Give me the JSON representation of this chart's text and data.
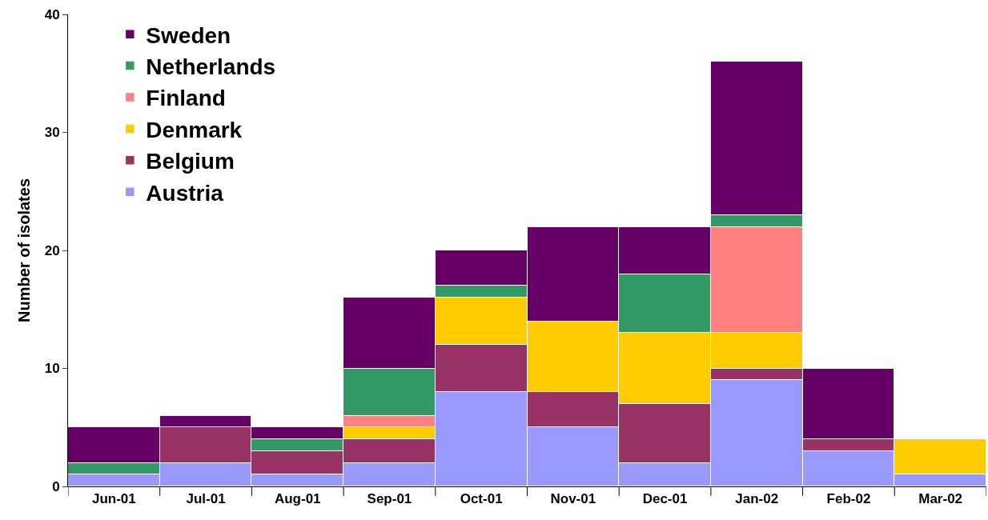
{
  "chart_data": {
    "type": "bar",
    "stacked": true,
    "ylabel": "Number of isolates",
    "categories": [
      "Jun-01",
      "Jul-01",
      "Aug-01",
      "Sep-01",
      "Oct-01",
      "Nov-01",
      "Dec-01",
      "Jan-02",
      "Feb-02",
      "Mar-02"
    ],
    "series": [
      {
        "name": "Austria",
        "color": "#9999ff",
        "values": [
          1,
          2,
          1,
          2,
          8,
          5,
          2,
          9,
          3,
          1
        ]
      },
      {
        "name": "Belgium",
        "color": "#993366",
        "values": [
          null,
          3,
          2,
          2,
          4,
          3,
          5,
          1,
          1,
          null
        ]
      },
      {
        "name": "Denmark",
        "color": "#ffcc00",
        "values": [
          null,
          null,
          null,
          1,
          4,
          6,
          6,
          3,
          null,
          3
        ]
      },
      {
        "name": "Finland",
        "color": "#ff8080",
        "values": [
          null,
          null,
          null,
          1,
          null,
          null,
          null,
          9,
          null,
          null
        ]
      },
      {
        "name": "Netherlands",
        "color": "#339966",
        "values": [
          1,
          null,
          1,
          4,
          1,
          null,
          5,
          1,
          null,
          null
        ]
      },
      {
        "name": "Sweden",
        "color": "#660066",
        "values": [
          3,
          1,
          1,
          6,
          3,
          8,
          4,
          13,
          6,
          null
        ]
      }
    ],
    "ylim": [
      0,
      40
    ],
    "yticks": [
      0,
      10,
      20,
      30,
      40
    ],
    "grid": false,
    "legend": "top left"
  }
}
